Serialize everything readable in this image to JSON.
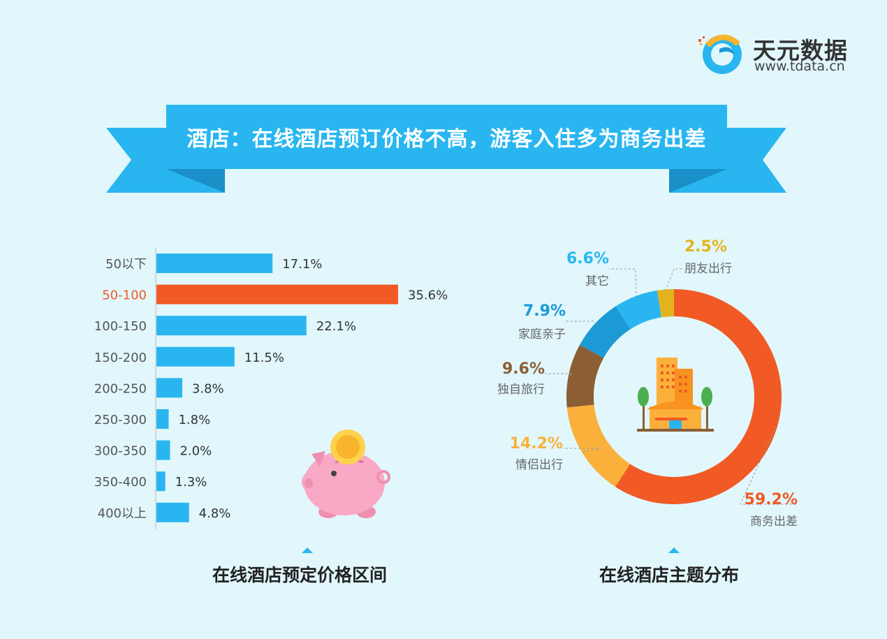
{
  "brand": {
    "name": "天元数据",
    "url": "www.tdata.cn"
  },
  "banner": {
    "title": "酒店：在线酒店预订价格不高，游客入住多为商务出差"
  },
  "colors": {
    "bar": "#29b6f0",
    "bar_highlight": "#f15a24",
    "banner": "#29b6f0",
    "banner_tail": "#1a9fd9",
    "background": "#e1f7fc"
  },
  "chart_data": [
    {
      "type": "bar",
      "orientation": "horizontal",
      "title": "在线酒店预定价格区间",
      "categories": [
        "50以下",
        "50-100",
        "100-150",
        "150-200",
        "200-250",
        "250-300",
        "300-350",
        "350-400",
        "400以上"
      ],
      "values": [
        17.1,
        35.6,
        22.1,
        11.5,
        3.8,
        1.8,
        2.0,
        1.3,
        4.8
      ],
      "value_labels": [
        "17.1%",
        "35.6%",
        "22.1%",
        "11.5%",
        "3.8%",
        "1.8%",
        "2.0%",
        "1.3%",
        "4.8%"
      ],
      "highlight": "50-100",
      "unit": "%"
    },
    {
      "type": "pie",
      "variant": "donut",
      "title": "在线酒店主题分布",
      "slices": [
        {
          "label": "商务出差",
          "value": 59.2,
          "value_label": "59.2%",
          "color": "#f15a24"
        },
        {
          "label": "情侣出行",
          "value": 14.2,
          "value_label": "14.2%",
          "color": "#fbb03b"
        },
        {
          "label": "独自旅行",
          "value": 9.6,
          "value_label": "9.6%",
          "color": "#8b5e34"
        },
        {
          "label": "家庭亲子",
          "value": 7.9,
          "value_label": "7.9%",
          "color": "#1b9ad6"
        },
        {
          "label": "其它",
          "value": 6.6,
          "value_label": "6.6%",
          "color": "#29b6f0"
        },
        {
          "label": "朋友出行",
          "value": 2.5,
          "value_label": "2.5%",
          "color": "#e3b31e"
        }
      ]
    }
  ]
}
